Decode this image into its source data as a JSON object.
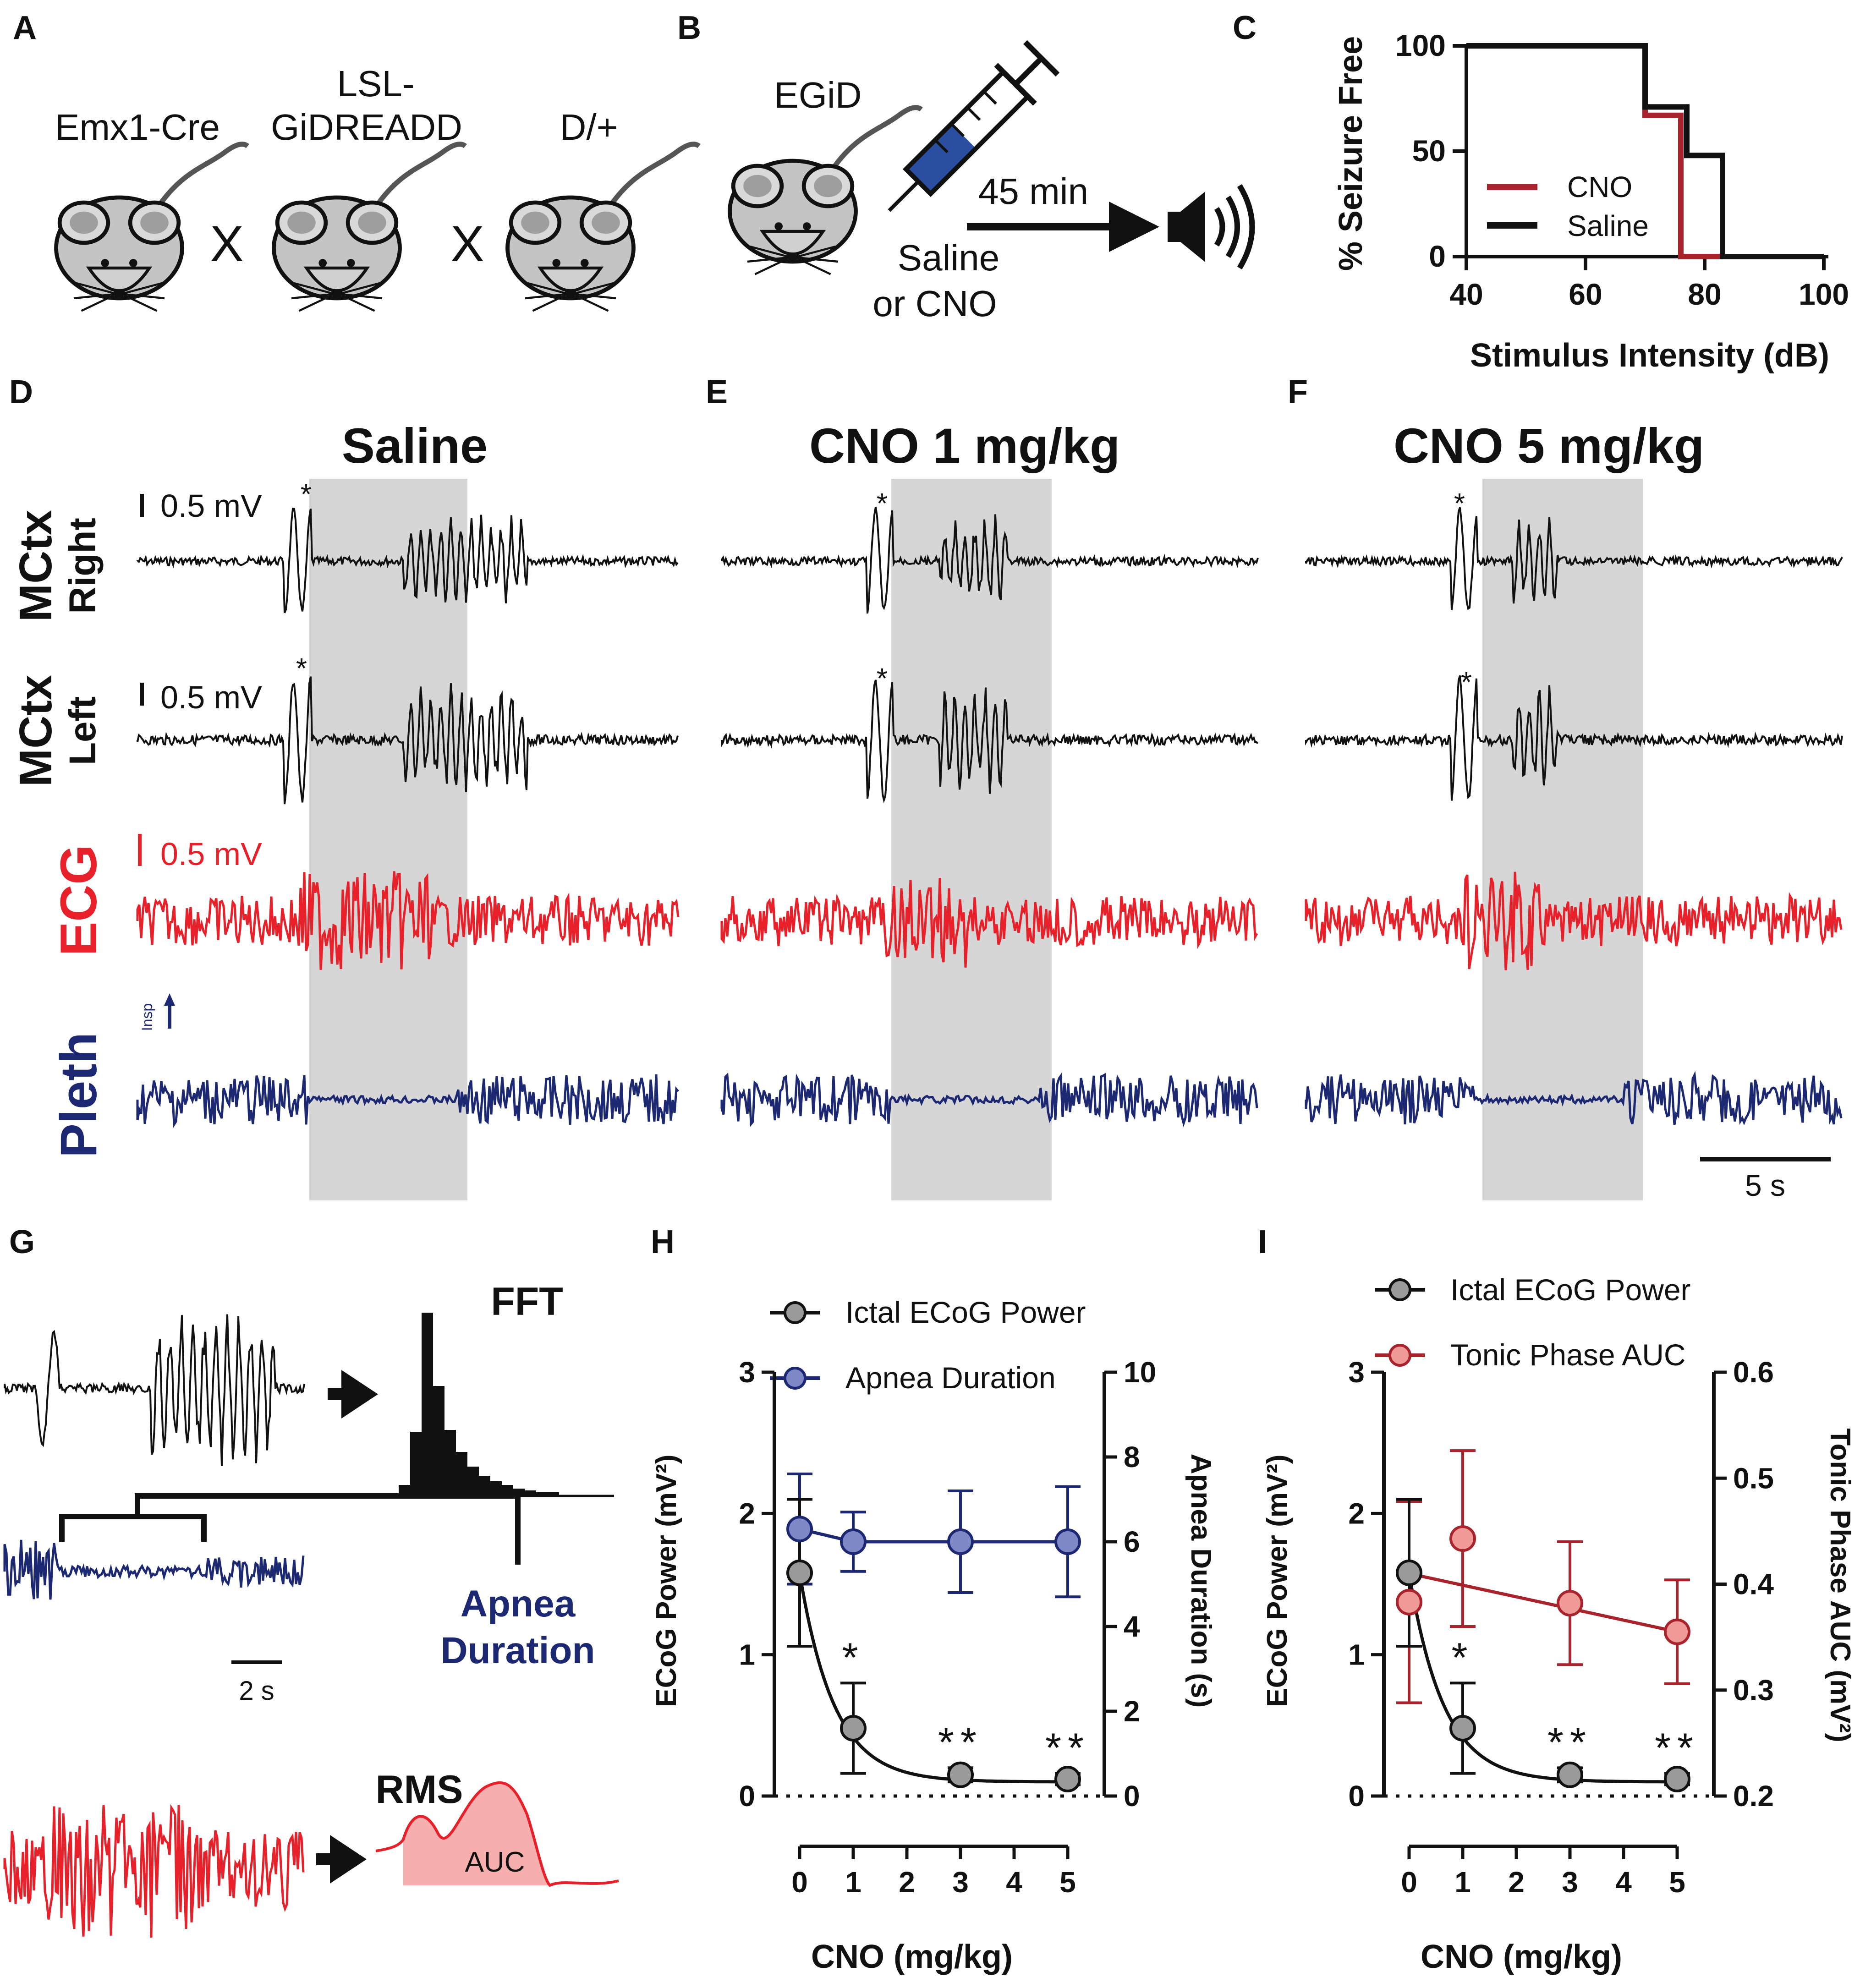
{
  "colors": {
    "black": "#111111",
    "red": "#e8202a",
    "darkred": "#a8232b",
    "navy": "#1c2872",
    "gray_box": "#d6d6d6",
    "blue_marker": "#7f89c8",
    "red_marker": "#f09a98",
    "gray_marker": "#9a9a9a",
    "auc_fill": "#f6aeae"
  },
  "panel_letters": [
    "A",
    "B",
    "C",
    "D",
    "E",
    "F",
    "G",
    "H",
    "I"
  ],
  "panelA": {
    "labels": {
      "emx": "Emx1-Cre",
      "lsl1": "LSL-",
      "lsl2": "GiDREADD",
      "d": "D/+"
    },
    "cross": "X",
    "icons": [
      "mouse-icon",
      "mouse-icon",
      "mouse-icon"
    ]
  },
  "panelB": {
    "label": "EGiD",
    "time": "45 min",
    "treat1": "Saline",
    "treat2": "or CNO",
    "icons": [
      "mouse-icon",
      "syringe-icon",
      "arrow-icon",
      "speaker-icon"
    ]
  },
  "panelC": {
    "chart_data": {
      "type": "line",
      "title": "",
      "xlabel": "Stimulus Intensity (dB)",
      "ylabel": "% Seizure Free",
      "xlim": [
        40,
        100
      ],
      "ylim": [
        0,
        100
      ],
      "xticks": [
        "40",
        "60",
        "80",
        "100"
      ],
      "yticks": [
        "0",
        "50",
        "100"
      ],
      "legend": "center-left",
      "series": [
        {
          "name": "CNO",
          "color": "#a8232b",
          "x": [
            40,
            70,
            70,
            76,
            76,
            100
          ],
          "y": [
            100,
            100,
            67,
            67,
            0,
            0
          ]
        },
        {
          "name": "Saline",
          "color": "#111111",
          "x": [
            40,
            70,
            70,
            77,
            77,
            83,
            83,
            100
          ],
          "y": [
            100,
            100,
            71,
            71,
            48,
            48,
            0,
            0
          ]
        }
      ]
    }
  },
  "traces": {
    "row_labels": {
      "mctx": "MCtx",
      "right": "Right",
      "left": "Left",
      "ecg": "ECG",
      "pleth": "Pleth",
      "insp": "Insp"
    },
    "panels": [
      {
        "title": "Saline",
        "scale": "0.5 mV"
      },
      {
        "title": "CNO 1 mg/kg"
      },
      {
        "title": "CNO 5 mg/kg"
      }
    ],
    "asterisk": "*",
    "scale_ecg": "0.5 mV",
    "time_scale": "5 s"
  },
  "panelG": {
    "fft": "FFT",
    "apnea1": "Apnea",
    "apnea2": "Duration",
    "time_scale": "2 s",
    "rms": "RMS",
    "auc": "AUC",
    "fft_bars": [
      0.06,
      0.35,
      1.0,
      0.6,
      0.36,
      0.24,
      0.16,
      0.11,
      0.08,
      0.06,
      0.04,
      0.03,
      0.02,
      0.02
    ]
  },
  "panelH": {
    "chart_data": {
      "type": "line",
      "xlabel": "CNO (mg/kg)",
      "ylabel_left": "ECoG Power (mV²)",
      "ylabel_right": "Apnea Duration (s)",
      "xlim": [
        0,
        5
      ],
      "ylim_left": [
        0,
        3
      ],
      "ylim_right": [
        0,
        10
      ],
      "xticks": [
        "0",
        "1",
        "2",
        "3",
        "4",
        "5"
      ],
      "yticks_left": [
        "0",
        "1",
        "2",
        "3"
      ],
      "yticks_right": [
        "0",
        "2",
        "4",
        "6",
        "8",
        "10"
      ],
      "series": [
        {
          "name": "Ictal ECoG Power",
          "axis": "left",
          "x": [
            0,
            1,
            3,
            5
          ],
          "y": [
            1.58,
            0.48,
            0.15,
            0.12
          ],
          "err": [
            0.52,
            0.32,
            0.05,
            0.04
          ]
        },
        {
          "name": "Apnea Duration",
          "axis": "right",
          "x": [
            0,
            1,
            3,
            5
          ],
          "y": [
            6.3,
            6.0,
            6.0,
            6.0
          ],
          "err": [
            1.3,
            0.7,
            1.2,
            1.3
          ]
        }
      ],
      "significance": [
        "",
        "*",
        "**",
        "**"
      ]
    }
  },
  "panelI": {
    "chart_data": {
      "type": "line",
      "xlabel": "CNO (mg/kg)",
      "ylabel_left": "ECoG Power (mV²)",
      "ylabel_right": "Tonic Phase AUC (mV²)",
      "xlim": [
        0,
        5
      ],
      "ylim_left": [
        0,
        3
      ],
      "ylim_right": [
        0.2,
        0.6
      ],
      "xticks": [
        "0",
        "1",
        "2",
        "3",
        "4",
        "5"
      ],
      "yticks_left": [
        "0",
        "1",
        "2",
        "3"
      ],
      "yticks_right": [
        "0.2",
        "0.3",
        "0.4",
        "0.5",
        "0.6"
      ],
      "series": [
        {
          "name": "Ictal ECoG Power",
          "axis": "left",
          "x": [
            0,
            1,
            3,
            5
          ],
          "y": [
            1.58,
            0.48,
            0.15,
            0.12
          ],
          "err": [
            0.52,
            0.32,
            0.05,
            0.04
          ]
        },
        {
          "name": "Tonic Phase AUC",
          "axis": "right",
          "x": [
            0,
            1,
            3,
            5
          ],
          "y": [
            0.383,
            0.443,
            0.382,
            0.355
          ],
          "err": [
            0.095,
            0.083,
            0.058,
            0.049
          ]
        }
      ],
      "significance": [
        "",
        "*",
        "**",
        "**"
      ]
    }
  }
}
